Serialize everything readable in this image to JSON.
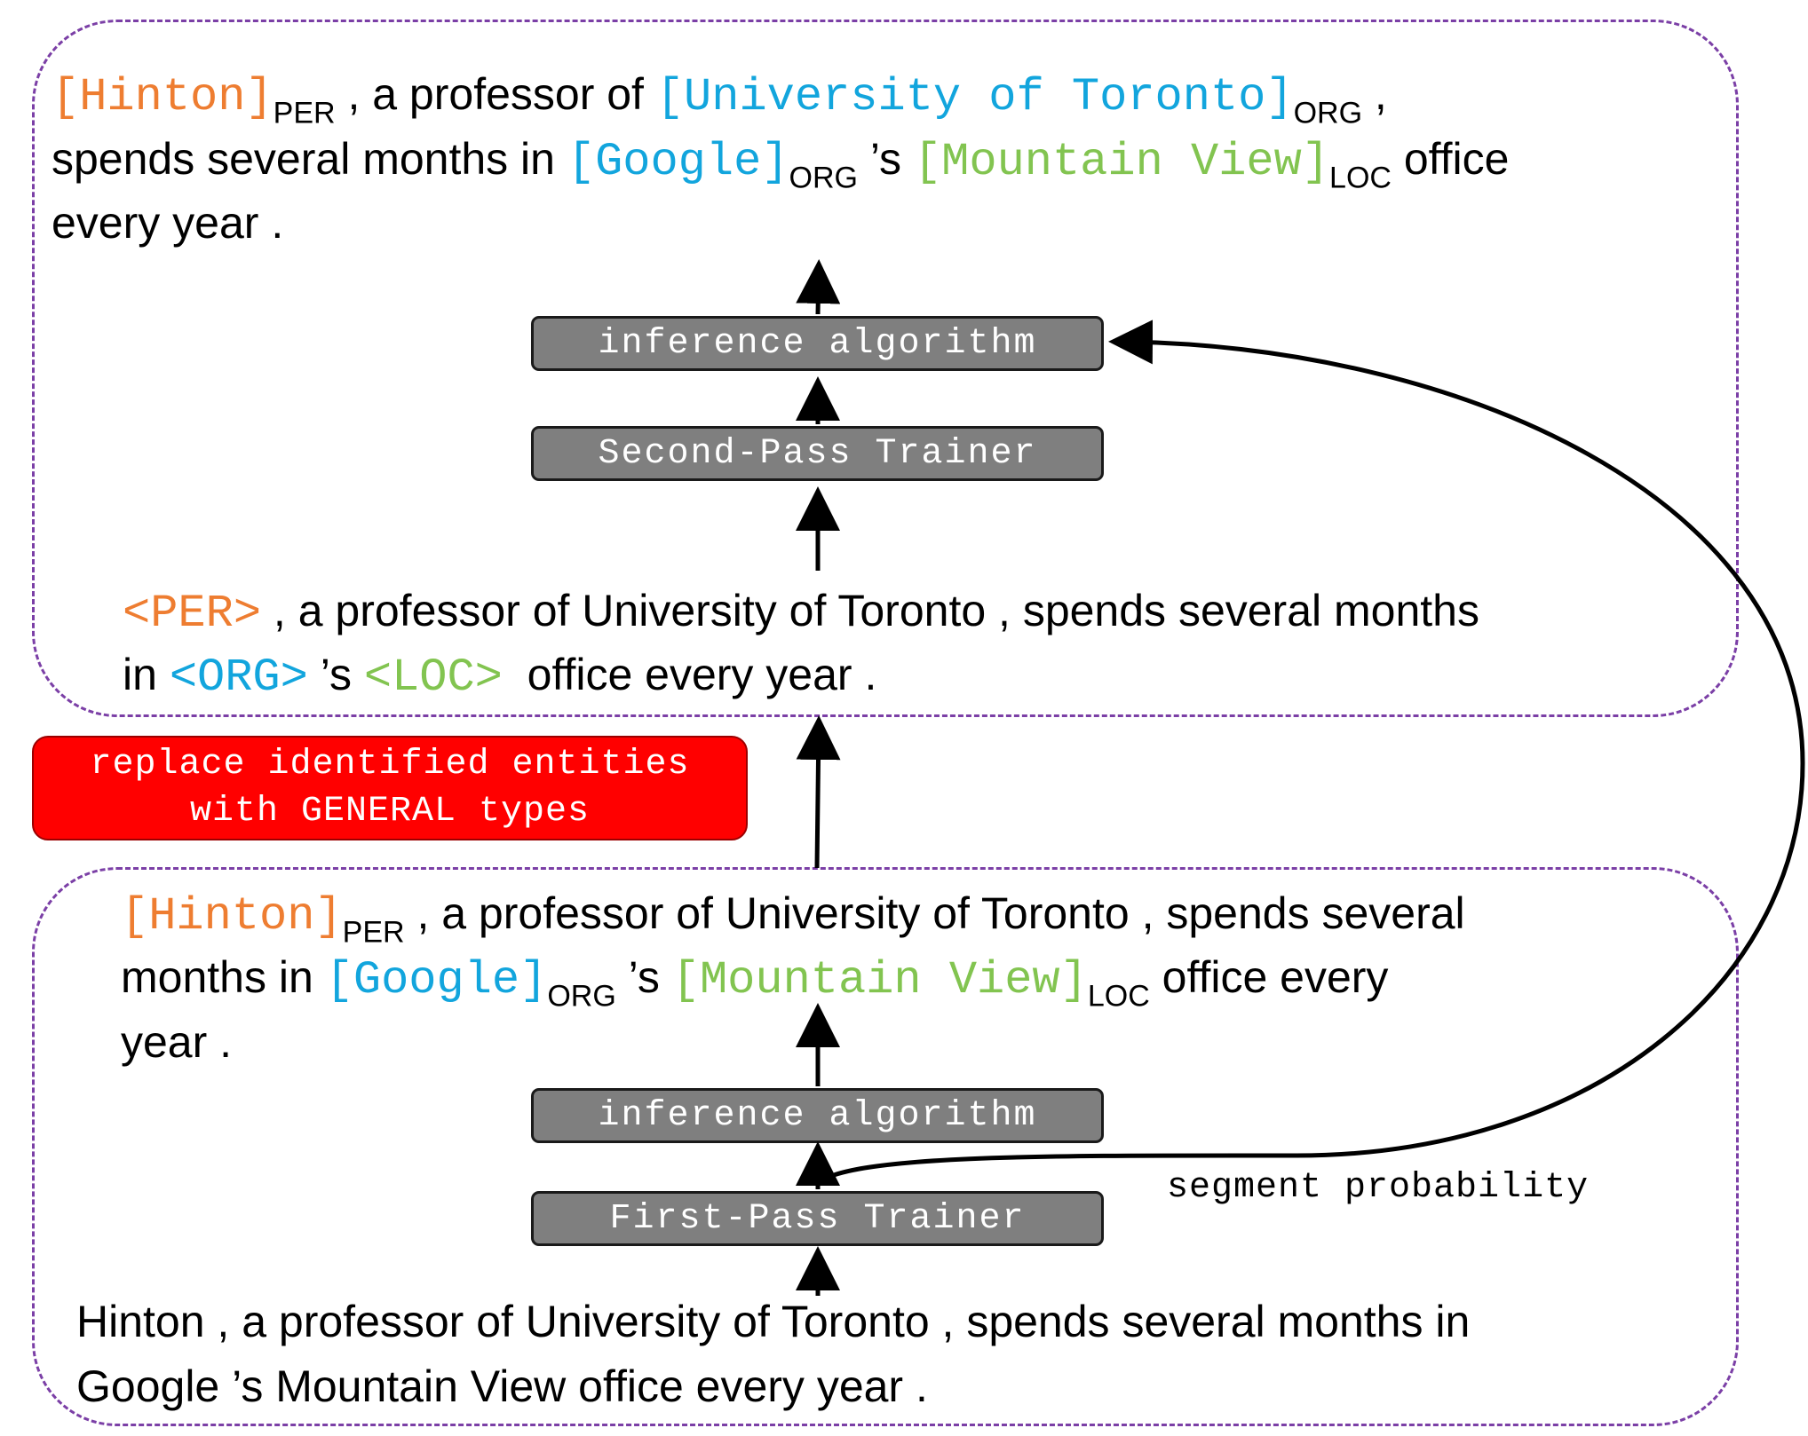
{
  "top_panel": {
    "output_sentence": {
      "entity_1": "[Hinton]",
      "label_1": "PER",
      "text_1": " , a professor of ",
      "entity_2": "[University of Toronto]",
      "label_2": "ORG",
      "text_2": " ,",
      "text_3": "spends several months in ",
      "entity_3": "[Google]",
      "label_3": "ORG",
      "text_4": " ’s ",
      "entity_4": "[Mountain View]",
      "label_4": "LOC",
      "text_5": " office",
      "text_6": "every year ."
    },
    "inference_label": "inference algorithm",
    "trainer_label": "Second-Pass Trainer",
    "general_sentence": {
      "type_1": "<PER>",
      "text_1": " , a professor of University of Toronto , spends several months",
      "text_2": "in ",
      "type_2": "<ORG>",
      "text_3": " ’s ",
      "type_3": "<LOC>",
      "text_4": "  office every year ."
    }
  },
  "replace_box": {
    "line_1": "replace identified entities",
    "line_2": "with GENERAL types"
  },
  "bottom_panel": {
    "output_sentence": {
      "entity_1": "[Hinton]",
      "label_1": "PER",
      "text_1": " , a professor of University of Toronto , spends several",
      "text_2": "months in ",
      "entity_2": "[Google]",
      "label_2": "ORG",
      "text_3": " ’s ",
      "entity_3": "[Mountain View]",
      "label_3": "LOC",
      "text_4": " office every",
      "text_5": "year ."
    },
    "inference_label": "inference algorithm",
    "trainer_label": "First-Pass Trainer",
    "input_sentence": {
      "line_1": "Hinton , a professor of University of Toronto , spends several months in",
      "line_2": "Google ’s Mountain View office every year ."
    }
  },
  "segment_probability_label": "segment probability",
  "colors": {
    "per": "#EE7D31",
    "org": "#12A5DD",
    "loc": "#82C450",
    "panel_border": "#7B3FA6",
    "model_box": "#7F7F7F",
    "replace_box": "#FF0000"
  }
}
